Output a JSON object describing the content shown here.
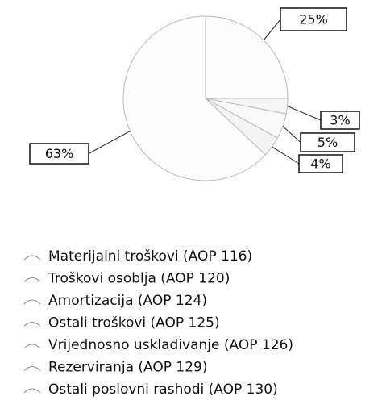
{
  "chart_data": {
    "type": "pie",
    "categories": [
      "Materijalni troškovi (AOP 116)",
      "Troškovi osoblja (AOP 120)",
      "Amortizacija (AOP 124)",
      "Ostali troškovi (AOP 125)",
      "Vrijednosno usklađivanje (AOP 126)",
      "Rezerviranja (AOP 129)",
      "Ostali poslovni rashodi (AOP 130)"
    ],
    "values": [
      25,
      3,
      5,
      4,
      63,
      0,
      0
    ],
    "value_labels": [
      "25%",
      "3%",
      "5%",
      "4%",
      "63%",
      null,
      null
    ],
    "colors": [
      "#fbfbfb",
      "#f6f6f6",
      "#f9f9f9",
      "#f4f4f4",
      "#fdfdfd",
      "#f2f2f2",
      "#f0f0f0"
    ]
  }
}
